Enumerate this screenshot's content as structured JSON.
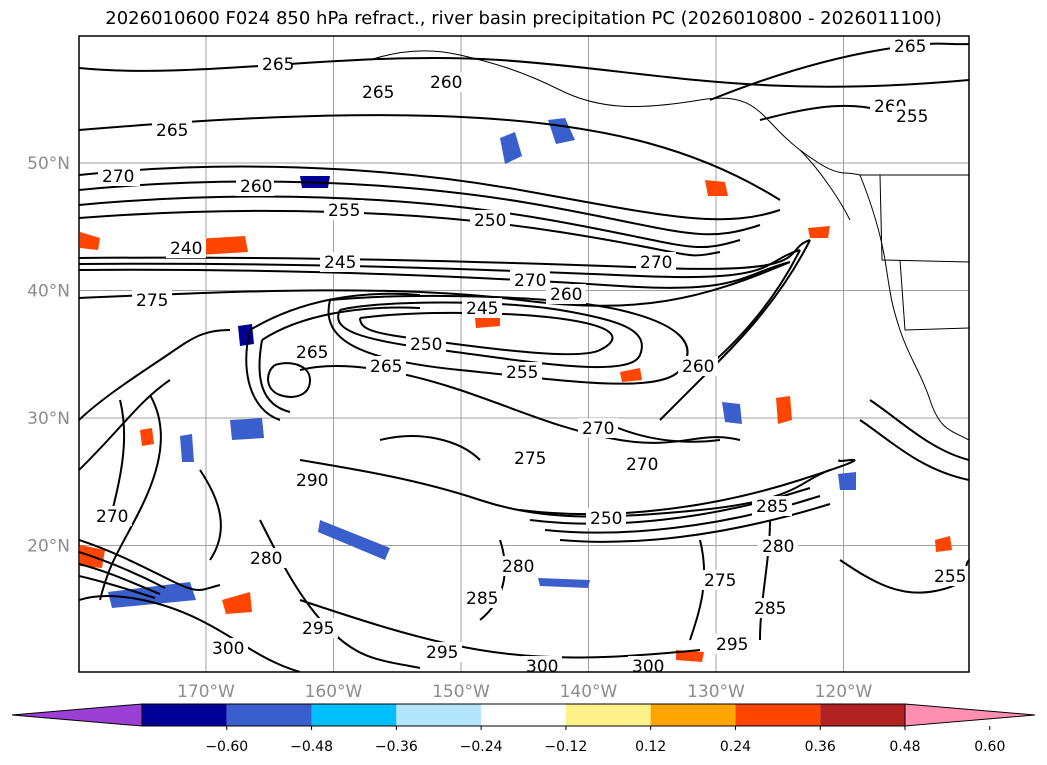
{
  "title": "2026010600 F024 850 hPa refract., river basin precipitation PC (2026010800 - 2026011100)",
  "map": {
    "lat_ticks": [
      {
        "label": "50°N",
        "lat": 50
      },
      {
        "label": "40°N",
        "lat": 40
      },
      {
        "label": "30°N",
        "lat": 30
      },
      {
        "label": "20°N",
        "lat": 20
      }
    ],
    "lon_ticks": [
      {
        "label": "170°W",
        "lon": -170
      },
      {
        "label": "160°W",
        "lon": -160
      },
      {
        "label": "150°W",
        "lon": -150
      },
      {
        "label": "140°W",
        "lon": -140
      },
      {
        "label": "130°W",
        "lon": -130
      },
      {
        "label": "120°W",
        "lon": -120
      }
    ],
    "contour_labels": [
      "265",
      "270",
      "260",
      "265",
      "265",
      "260",
      "265",
      "260",
      "255",
      "270",
      "260",
      "255",
      "250",
      "240",
      "245",
      "275",
      "245",
      "270",
      "250",
      "260",
      "265",
      "265",
      "250",
      "255",
      "270",
      "290",
      "275",
      "270",
      "285",
      "280",
      "295",
      "300",
      "295",
      "300",
      "300",
      "295",
      "275",
      "280",
      "285",
      "285",
      "270",
      "280",
      "255"
    ]
  },
  "colorbar": {
    "colors": [
      "#9b3fd6",
      "#000099",
      "#3a5fcd",
      "#00bfff",
      "#b3e5fc",
      "#ffffff",
      "#fff08a",
      "#ffa500",
      "#ff4500",
      "#b22222",
      "#ff8fb0"
    ],
    "tick_labels": [
      "−0.60",
      "−0.48",
      "−0.36",
      "−0.24",
      "−0.12",
      "0.12",
      "0.24",
      "0.36",
      "0.48",
      "0.60"
    ]
  }
}
